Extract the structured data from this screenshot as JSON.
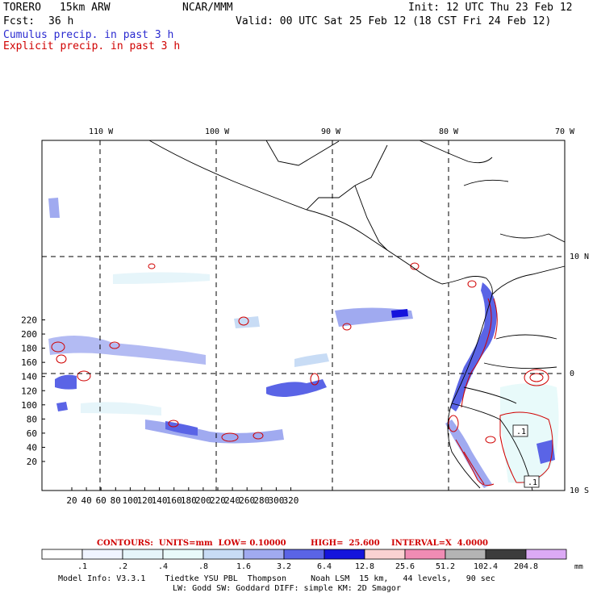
{
  "header": {
    "model": "TORERO",
    "resolution": "15km ARW",
    "org": "NCAR/MMM",
    "init": "Init: 12 UTC Thu 23 Feb 12",
    "fcst_label": "Fcst:",
    "fcst_value": "36 h",
    "valid": "Valid: 00 UTC Sat 25 Feb 12 (18 CST Fri 24 Feb 12)",
    "field1": "Cumulus precip. in past 3 h",
    "field2": "Explicit precip. in past 3 h",
    "field1_color": "#2a2ad0",
    "field2_color": "#d00000"
  },
  "axes": {
    "lon_labels": [
      "110 W",
      "100 W",
      "90 W",
      "80 W",
      "70 W"
    ],
    "lat_labels": [
      "10 N",
      "0",
      "10 S"
    ],
    "x_ticks": [
      "20",
      "40",
      "60",
      "80",
      "100",
      "120",
      "140",
      "160",
      "180",
      "200",
      "220",
      "240",
      "260",
      "280",
      "300",
      "320"
    ],
    "y_ticks": [
      "20",
      "40",
      "60",
      "80",
      "100",
      "120",
      "140",
      "160",
      "180",
      "200",
      "220"
    ]
  },
  "contours": {
    "units": "CONTOURS:  UNITS=mm  LOW= 0.10000",
    "high": "HIGH=  25.600",
    "interval": "INTERVAL=X  4.0000"
  },
  "colorbar": {
    "labels": [
      ".1",
      ".2",
      ".4",
      ".8",
      "1.6",
      "3.2",
      "6.4",
      "12.8",
      "25.6",
      "51.2",
      "102.4",
      "204.8"
    ],
    "unit": "mm",
    "colors": [
      "#ffffff",
      "#f0f4ff",
      "#e6f5fa",
      "#e8fafa",
      "#c8dcf5",
      "#a0aaf0",
      "#5a64e6",
      "#1414dc",
      "#fad2d2",
      "#f08cb4",
      "#b4b4b4",
      "#3c3c3c",
      "#dcaaf5"
    ]
  },
  "model_info": {
    "line1": "Model Info: V3.3.1    Tiedtke YSU PBL  Thompson     Noah LSM  15 km,   44 levels,   90 sec",
    "line2": "LW: Godd SW: Goddard DIFF: simple KM: 2D Smagor"
  },
  "map_labels": {
    "box1": ".1",
    "box2": ".1"
  }
}
